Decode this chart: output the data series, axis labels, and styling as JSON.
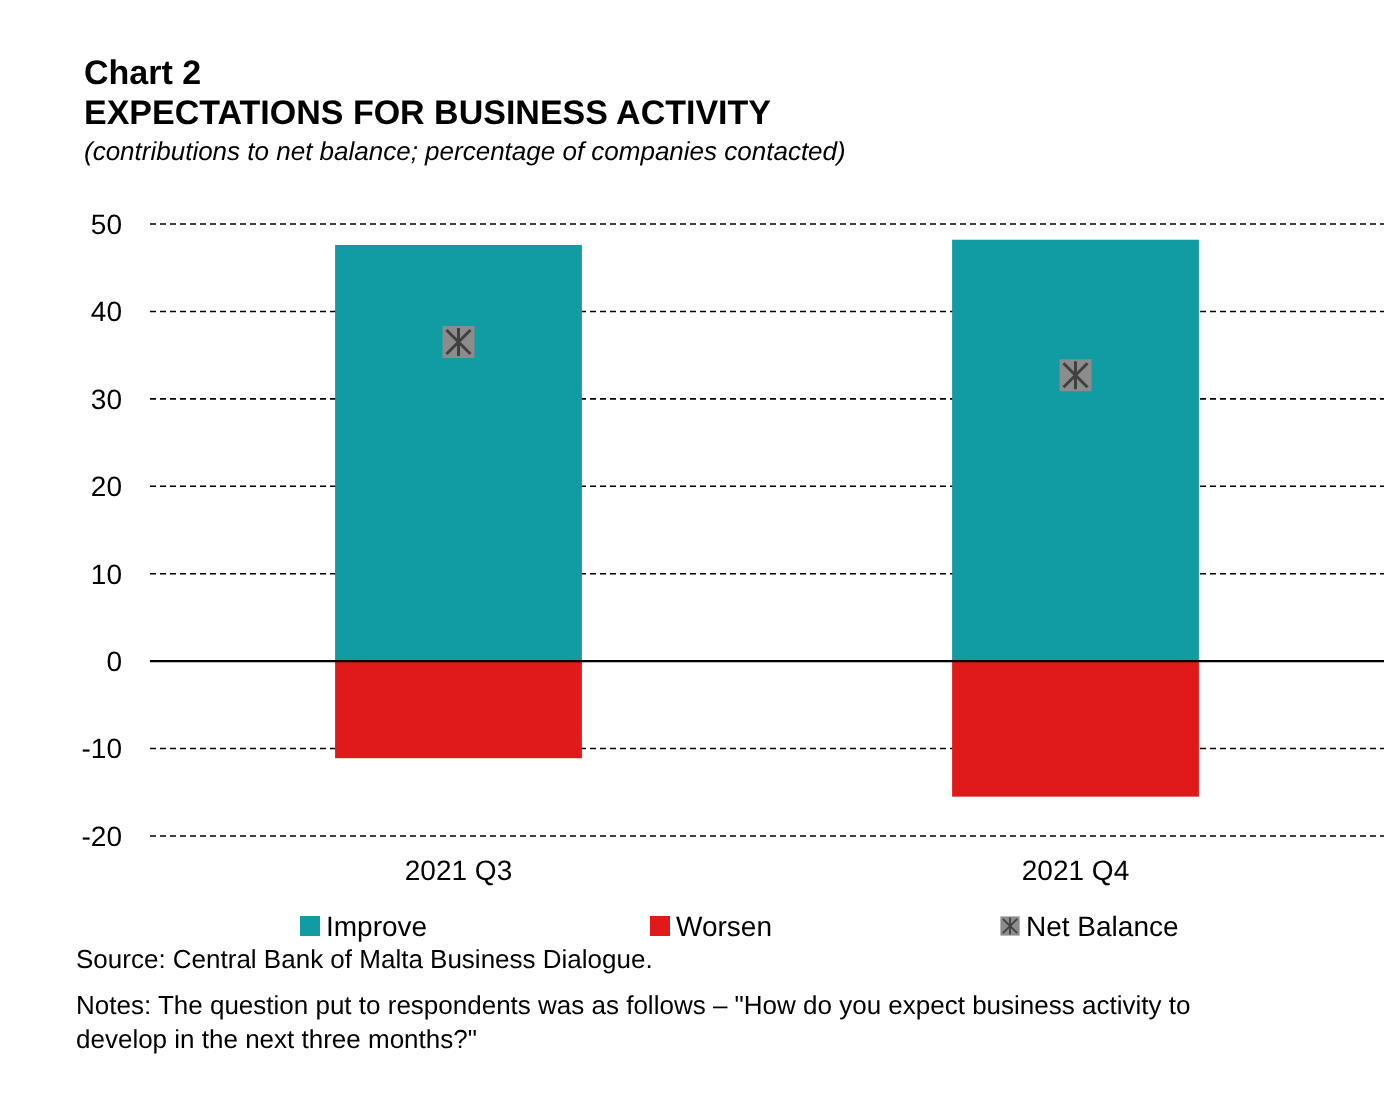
{
  "chart_data": {
    "type": "bar",
    "title": "Chart 2\nEXPECTATIONS FOR BUSINESS ACTIVITY",
    "subtitle": "(contributions to net balance; percentage of companies contacted)",
    "categories": [
      "2021 Q3",
      "2021 Q4"
    ],
    "stacked": true,
    "series": [
      {
        "name": "Improve",
        "color": "#109ca2",
        "values": [
          47.6,
          48.2
        ]
      },
      {
        "name": "Worsen",
        "color": "#e01a1a",
        "values": [
          -11.1,
          -15.5
        ]
      },
      {
        "name": "Net Balance",
        "type": "scatter",
        "color": "#8c8c8c",
        "marker": "square",
        "values": [
          36.5,
          32.7
        ]
      }
    ],
    "ylim": [
      -20,
      50
    ],
    "yticks": [
      -20,
      -10,
      0,
      10,
      20,
      30,
      40,
      50
    ],
    "grid": "y",
    "legend": "bottom",
    "annotations": [
      "Source: Central Bank of Malta Business Dialogue.",
      "Notes: The question put to respondents was as follows – \"How do you expect business activity to develop in the next three months?\""
    ]
  }
}
